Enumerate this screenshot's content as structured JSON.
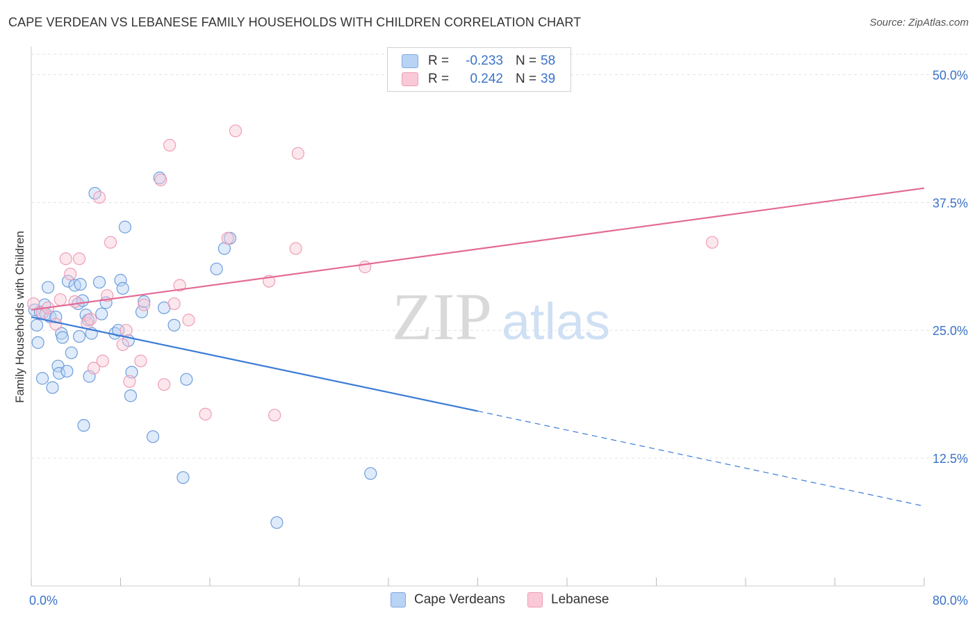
{
  "title": "CAPE VERDEAN VS LEBANESE FAMILY HOUSEHOLDS WITH CHILDREN CORRELATION CHART",
  "source": "Source: ZipAtlas.com",
  "watermark": {
    "zip": "ZIP",
    "atlas": "atlas"
  },
  "legend": {
    "rows": [
      {
        "r_label": "R =",
        "r_value": "-0.233",
        "n_label": "N =",
        "n_value": "58",
        "fill": "#b9d3f5",
        "stroke": "#7ea8e2"
      },
      {
        "r_label": "R =",
        "r_value": "0.242",
        "n_label": "N =",
        "n_value": "39",
        "fill": "#f9c9d7",
        "stroke": "#ef9db6"
      }
    ]
  },
  "bottom_legend": [
    {
      "label": "Cape Verdeans",
      "fill": "#b9d3f5",
      "stroke": "#7ea8e2"
    },
    {
      "label": "Lebanese",
      "fill": "#f9c9d7",
      "stroke": "#ef9db6"
    }
  ],
  "chart_data": {
    "type": "scatter",
    "title": "CAPE VERDEAN VS LEBANESE FAMILY HOUSEHOLDS WITH CHILDREN CORRELATION CHART",
    "xlabel": "",
    "ylabel": "Family Households with Children",
    "xlim": [
      0,
      80
    ],
    "ylim": [
      0,
      52
    ],
    "x_tick_labels": [
      "0.0%",
      "80.0%"
    ],
    "y_ticks": [
      12.5,
      25.0,
      37.5,
      50.0
    ],
    "y_tick_labels": [
      "12.5%",
      "25.0%",
      "37.5%",
      "50.0%"
    ],
    "grid": true,
    "colors": {
      "blue_line": "#3a7bd5",
      "pink_line": "#e36a94",
      "tick_text": "#3a72c8"
    },
    "series": [
      {
        "name": "Cape Verdeans",
        "r": -0.233,
        "n": 58,
        "trend": {
          "x0": 0,
          "y0": 26.3,
          "x1": 40,
          "y1": 17.1,
          "dash_to_x": 80,
          "dash_to_y": 7.8
        },
        "points": [
          [
            0.3,
            27.0
          ],
          [
            0.5,
            25.5
          ],
          [
            0.8,
            26.8
          ],
          [
            0.6,
            23.8
          ],
          [
            1.0,
            20.3
          ],
          [
            1.2,
            27.5
          ],
          [
            1.5,
            29.2
          ],
          [
            1.3,
            26.6
          ],
          [
            1.7,
            26.3
          ],
          [
            1.9,
            19.4
          ],
          [
            2.2,
            26.3
          ],
          [
            2.4,
            21.5
          ],
          [
            2.5,
            20.8
          ],
          [
            2.7,
            24.7
          ],
          [
            2.8,
            24.3
          ],
          [
            3.2,
            21.0
          ],
          [
            3.3,
            29.8
          ],
          [
            3.6,
            22.8
          ],
          [
            3.9,
            29.4
          ],
          [
            4.2,
            27.6
          ],
          [
            4.3,
            24.4
          ],
          [
            4.4,
            29.5
          ],
          [
            4.6,
            27.9
          ],
          [
            4.7,
            15.7
          ],
          [
            4.9,
            26.5
          ],
          [
            5.1,
            26.0
          ],
          [
            5.2,
            20.5
          ],
          [
            5.4,
            24.7
          ],
          [
            5.7,
            38.4
          ],
          [
            6.1,
            29.7
          ],
          [
            6.3,
            26.6
          ],
          [
            6.7,
            27.7
          ],
          [
            7.5,
            24.7
          ],
          [
            7.8,
            25.0
          ],
          [
            8.0,
            29.9
          ],
          [
            8.2,
            29.1
          ],
          [
            8.4,
            35.1
          ],
          [
            8.7,
            24.0
          ],
          [
            9.0,
            20.9
          ],
          [
            8.9,
            18.6
          ],
          [
            9.9,
            26.8
          ],
          [
            10.1,
            27.8
          ],
          [
            10.9,
            14.6
          ],
          [
            11.5,
            39.9
          ],
          [
            11.9,
            27.2
          ],
          [
            12.8,
            25.5
          ],
          [
            13.6,
            10.6
          ],
          [
            13.9,
            20.2
          ],
          [
            16.6,
            31.0
          ],
          [
            17.3,
            33.0
          ],
          [
            17.8,
            34.0
          ],
          [
            22.0,
            6.2
          ],
          [
            30.4,
            11.0
          ]
        ]
      },
      {
        "name": "Lebanese",
        "r": 0.242,
        "n": 39,
        "trend": {
          "x0": 0,
          "y0": 27.0,
          "x1": 80,
          "y1": 38.9
        },
        "points": [
          [
            0.2,
            27.6
          ],
          [
            1.0,
            26.7
          ],
          [
            1.5,
            27.2
          ],
          [
            2.2,
            25.6
          ],
          [
            2.6,
            28.0
          ],
          [
            3.1,
            32.0
          ],
          [
            3.5,
            30.5
          ],
          [
            3.9,
            27.8
          ],
          [
            4.3,
            32.0
          ],
          [
            5.0,
            25.7
          ],
          [
            5.3,
            26.1
          ],
          [
            5.6,
            21.3
          ],
          [
            6.1,
            38.0
          ],
          [
            6.4,
            22.0
          ],
          [
            6.8,
            28.4
          ],
          [
            7.1,
            33.6
          ],
          [
            8.2,
            23.6
          ],
          [
            8.5,
            25.0
          ],
          [
            8.8,
            20.0
          ],
          [
            9.8,
            22.0
          ],
          [
            10.1,
            27.5
          ],
          [
            11.6,
            39.7
          ],
          [
            11.9,
            19.7
          ],
          [
            12.4,
            43.1
          ],
          [
            12.8,
            27.6
          ],
          [
            13.3,
            29.4
          ],
          [
            14.1,
            26.0
          ],
          [
            15.6,
            16.8
          ],
          [
            17.6,
            34.0
          ],
          [
            18.3,
            44.5
          ],
          [
            21.3,
            29.8
          ],
          [
            21.8,
            16.7
          ],
          [
            23.7,
            33.0
          ],
          [
            23.9,
            42.3
          ],
          [
            29.9,
            31.2
          ],
          [
            61.0,
            33.6
          ]
        ]
      }
    ]
  }
}
